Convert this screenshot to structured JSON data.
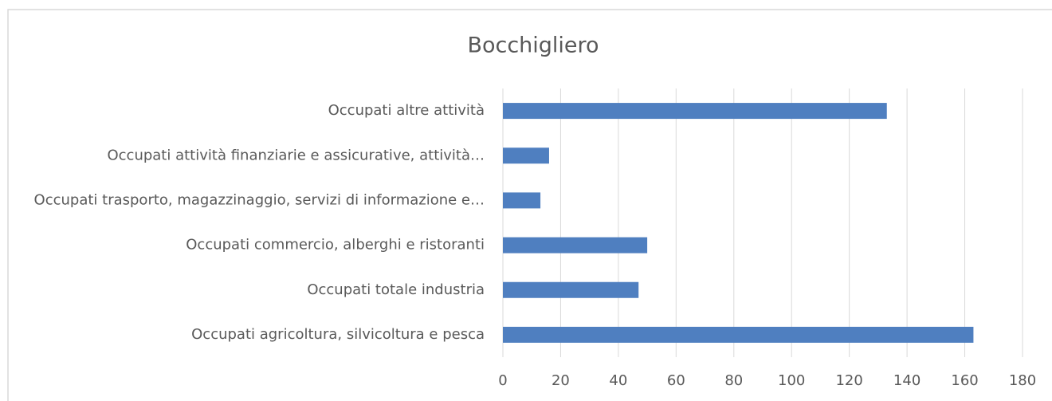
{
  "chart_data": {
    "type": "bar",
    "orientation": "horizontal",
    "title": "Bocchigliero",
    "categories": [
      "Occupati altre attività",
      "Occupati attività finanziarie e assicurative, attività…",
      "Occupati trasporto, magazzinaggio, servizi di informazione e…",
      "Occupati commercio, alberghi e ristoranti",
      "Occupati totale industria",
      "Occupati agricoltura, silvicoltura e pesca"
    ],
    "values": [
      133,
      16,
      13,
      50,
      47,
      163
    ],
    "color": "#4f7fc0",
    "xlim": [
      0,
      180
    ],
    "xticks": [
      0,
      20,
      40,
      60,
      80,
      100,
      120,
      140,
      160,
      180
    ],
    "grid": true
  }
}
